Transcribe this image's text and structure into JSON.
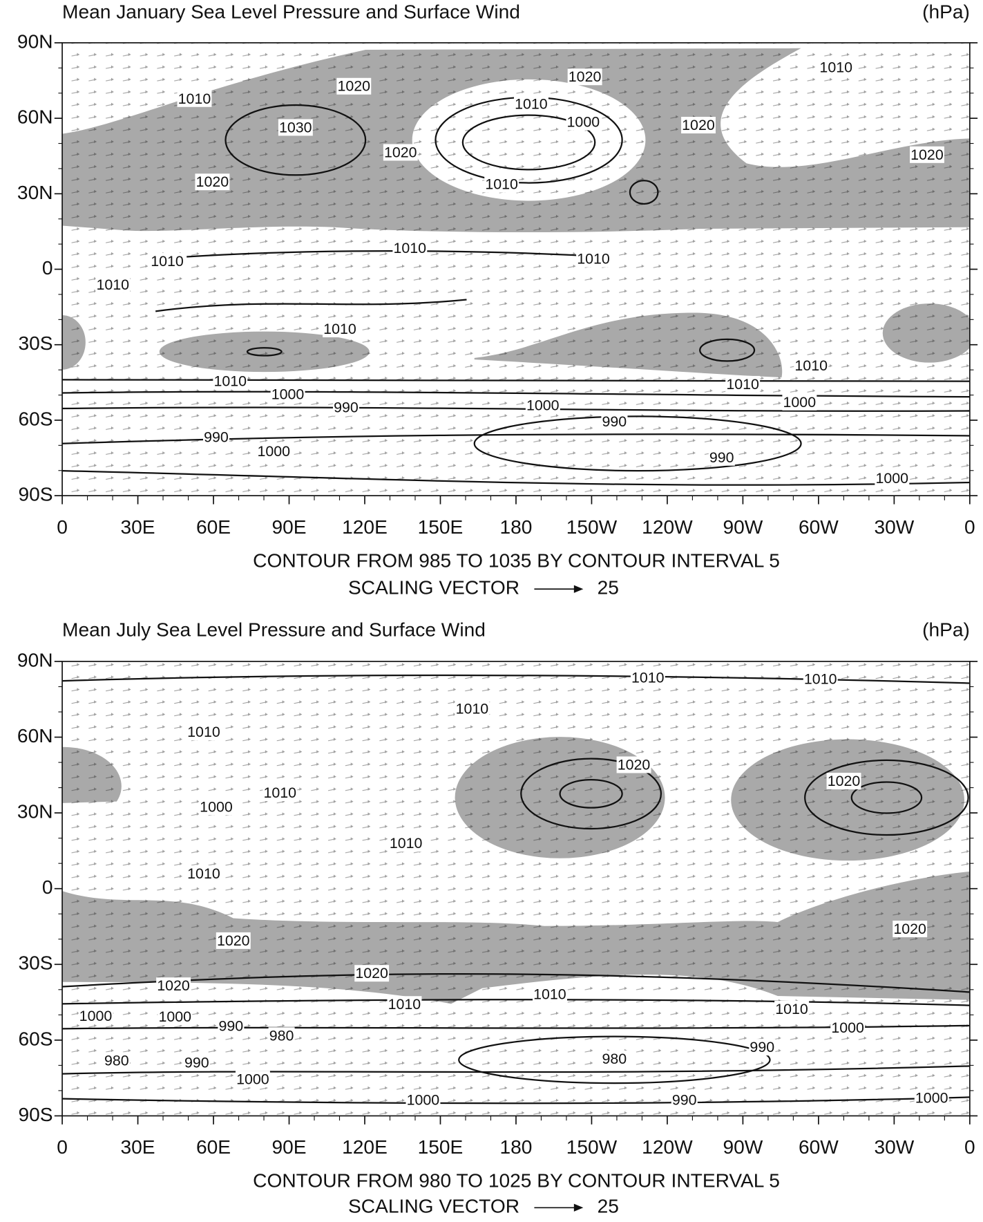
{
  "panels": [
    {
      "title": "Mean January Sea Level Pressure and Surface Wind",
      "units": "(hPa)",
      "y_axis_labels": [
        "90N",
        "60N",
        "30N",
        "0",
        "30S",
        "60S",
        "90S"
      ],
      "x_axis_labels": [
        "0",
        "30E",
        "60E",
        "90E",
        "120E",
        "150E",
        "180",
        "150W",
        "120W",
        "90W",
        "60W",
        "30W",
        "0"
      ],
      "contour_labels": [
        1010,
        1020,
        1020,
        1010,
        1030,
        1010,
        1000,
        1020,
        1020,
        1020,
        1020,
        1010,
        1010,
        1010,
        1010,
        1010,
        1010,
        1010,
        1010,
        1010,
        1000,
        990,
        1000,
        1000,
        990,
        990,
        1000,
        990,
        1000
      ],
      "contour_caption": "CONTOUR FROM 985 TO 1035 BY CONTOUR INTERVAL 5",
      "scaling_vector_label": "SCALING VECTOR",
      "scaling_vector_value": 25
    },
    {
      "title": "Mean July Sea Level Pressure and Surface Wind",
      "units": "(hPa)",
      "y_axis_labels": [
        "90N",
        "60N",
        "30N",
        "0",
        "30S",
        "60S",
        "90S"
      ],
      "x_axis_labels": [
        "0",
        "30E",
        "60E",
        "90E",
        "120E",
        "150E",
        "180",
        "150W",
        "120W",
        "90W",
        "60W",
        "30W",
        "0"
      ],
      "contour_labels": [
        1010,
        1010,
        1010,
        1010,
        1020,
        1020,
        1010,
        1000,
        1010,
        1010,
        1020,
        1020,
        1020,
        1020,
        1010,
        1010,
        1010,
        1000,
        1000,
        990,
        980,
        1000,
        990,
        980,
        990,
        980,
        1000,
        1000,
        990,
        1000
      ],
      "contour_caption": "CONTOUR FROM 980 TO 1025 BY CONTOUR INTERVAL 5",
      "scaling_vector_label": "SCALING VECTOR",
      "scaling_vector_value": 25
    }
  ]
}
